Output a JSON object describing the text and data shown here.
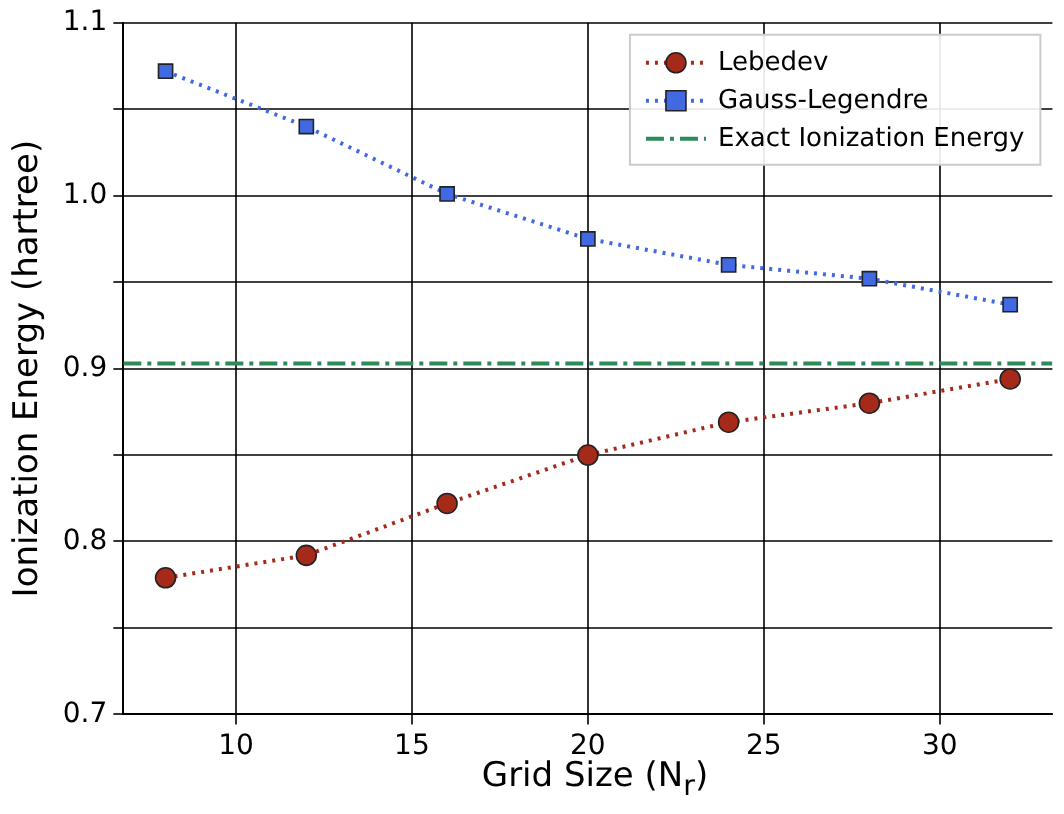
{
  "chart_data": {
    "type": "line",
    "xlabel": "Grid Size (N$_{r}$)",
    "ylabel": "Ionization Energy (hartree)",
    "x": [
      8,
      12,
      16,
      20,
      24,
      28,
      32
    ],
    "series": [
      {
        "name": "Lebedev",
        "color": "#a52a1a",
        "values": [
          0.779,
          0.792,
          0.822,
          0.85,
          0.869,
          0.88,
          0.894
        ],
        "marker": "circle",
        "line_style": "dotted"
      },
      {
        "name": "Gauss-Legendre",
        "color": "#4169e1",
        "values": [
          1.072,
          1.04,
          1.001,
          0.975,
          0.96,
          0.952,
          0.937
        ],
        "marker": "square",
        "line_style": "dotted"
      }
    ],
    "ref_lines": [
      {
        "axis": "y",
        "value": 0.903,
        "label": "Exact Ionization Energy",
        "color": "#2e8b57",
        "line_style": "dashdot"
      }
    ],
    "xlim": [
      6.8,
      33.2
    ],
    "xticks": [
      10,
      15,
      20,
      25,
      30
    ],
    "ylim": [
      0.7,
      1.1
    ],
    "yticks": [
      {
        "value": 0.7,
        "label": "0.7"
      },
      {
        "value": 0.75,
        "label": null
      },
      {
        "value": 0.8,
        "label": "0.8"
      },
      {
        "value": 0.85,
        "label": null
      },
      {
        "value": 0.9,
        "label": "0.9"
      },
      {
        "value": 0.95,
        "label": null
      },
      {
        "value": 1.0,
        "label": "1.0"
      },
      {
        "value": 1.05,
        "label": null
      },
      {
        "value": 1.1,
        "label": "1.1"
      }
    ],
    "grid": true,
    "legend": "top right"
  }
}
